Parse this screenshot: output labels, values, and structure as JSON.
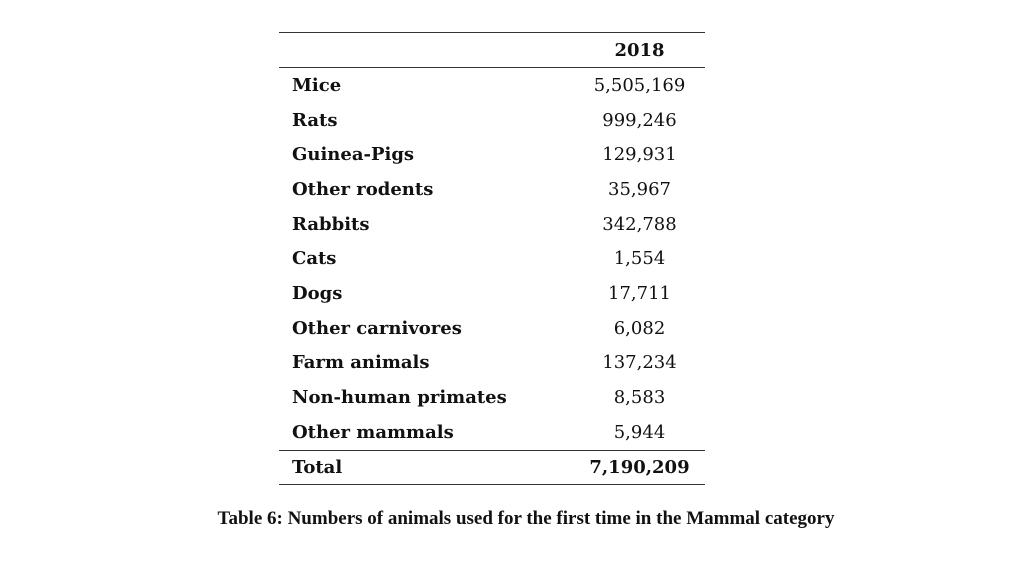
{
  "table": {
    "year_header": "2018",
    "rows": [
      {
        "label": "Mice",
        "value": "5,505,169"
      },
      {
        "label": "Rats",
        "value": "999,246"
      },
      {
        "label": "Guinea-Pigs",
        "value": "129,931"
      },
      {
        "label": "Other rodents",
        "value": "35,967"
      },
      {
        "label": "Rabbits",
        "value": "342,788"
      },
      {
        "label": "Cats",
        "value": "1,554"
      },
      {
        "label": "Dogs",
        "value": "17,711"
      },
      {
        "label": "Other carnivores",
        "value": "6,082"
      },
      {
        "label": "Farm animals",
        "value": "137,234"
      },
      {
        "label": "Non-human primates",
        "value": "8,583"
      },
      {
        "label": "Other mammals",
        "value": "5,944"
      }
    ],
    "total": {
      "label": "Total",
      "value": "7,190,209"
    }
  },
  "caption": "Table 6: Numbers of animals used for the first time in the Mammal category"
}
